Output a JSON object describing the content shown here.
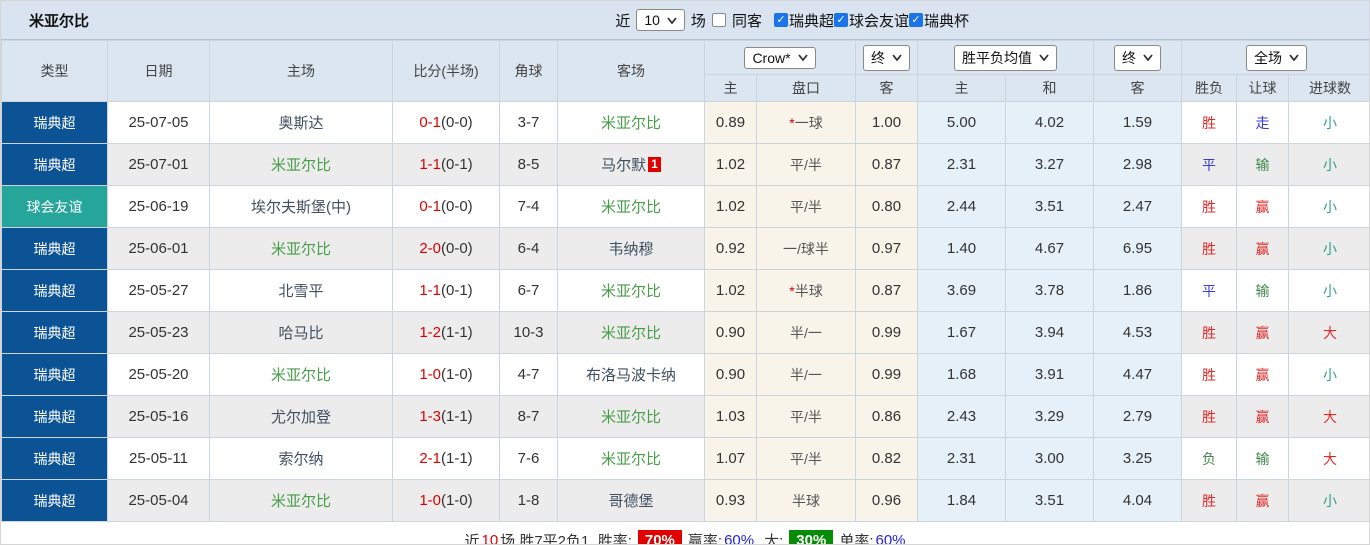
{
  "team_name": "米亚尔比",
  "topbar": {
    "title": "米亚尔比",
    "near_label": "近",
    "matches_value": "10",
    "matches_label": "场",
    "same_away_label": "同客",
    "filters": [
      {
        "label": "瑞典超",
        "checked": true
      },
      {
        "label": "球会友谊",
        "checked": true
      },
      {
        "label": "瑞典杯",
        "checked": true
      }
    ]
  },
  "selects": {
    "odds_company": "Crow*",
    "odds_time_1": "终",
    "avg_type": "胜平负均值",
    "avg_time": "终",
    "scope": "全场"
  },
  "columns": [
    "类型",
    "日期",
    "主场",
    "比分(半场)",
    "角球",
    "客场"
  ],
  "sub_columns": [
    "主",
    "盘口",
    "客",
    "主",
    "和",
    "客",
    "胜负",
    "让球",
    "进球数"
  ],
  "colors": {
    "league_bg": {
      "瑞典超": "#0b5394",
      "球会友谊": "#26a69a"
    },
    "marks": {
      "胜": "#e12b2b",
      "平": "#3b3bd9",
      "负": "#44884e",
      "赢": "#e12b2b",
      "走": "#3b3bd9",
      "输": "#44884e",
      "大": "#e12b2b",
      "小": "#2f9e86"
    },
    "team_highlight": "#4a9d4a",
    "score_red": "#e00000"
  },
  "rows": [
    {
      "league": "瑞典超",
      "date": "25-07-05",
      "home": "奥斯达",
      "score": "0-1",
      "half": "(0-0)",
      "corner": "3-7",
      "away": "米亚尔比",
      "away_badge": "",
      "crown": {
        "home": "0.89",
        "handicap": "*一球",
        "away": "1.00"
      },
      "avg": [
        "5.00",
        "4.02",
        "1.59"
      ],
      "marks": [
        "胜",
        "走",
        "小"
      ]
    },
    {
      "league": "瑞典超",
      "date": "25-07-01",
      "home": "米亚尔比",
      "score": "1-1",
      "half": "(0-1)",
      "corner": "8-5",
      "away": "马尔默",
      "away_badge": "1",
      "crown": {
        "home": "1.02",
        "handicap": "平/半",
        "away": "0.87"
      },
      "avg": [
        "2.31",
        "3.27",
        "2.98"
      ],
      "marks": [
        "平",
        "输",
        "小"
      ]
    },
    {
      "league": "球会友谊",
      "date": "25-06-19",
      "home": "埃尔夫斯堡(中)",
      "score": "0-1",
      "half": "(0-0)",
      "corner": "7-4",
      "away": "米亚尔比",
      "away_badge": "",
      "crown": {
        "home": "1.02",
        "handicap": "平/半",
        "away": "0.80"
      },
      "avg": [
        "2.44",
        "3.51",
        "2.47"
      ],
      "marks": [
        "胜",
        "赢",
        "小"
      ]
    },
    {
      "league": "瑞典超",
      "date": "25-06-01",
      "home": "米亚尔比",
      "score": "2-0",
      "half": "(0-0)",
      "corner": "6-4",
      "away": "韦纳穆",
      "away_badge": "",
      "crown": {
        "home": "0.92",
        "handicap": "一/球半",
        "away": "0.97"
      },
      "avg": [
        "1.40",
        "4.67",
        "6.95"
      ],
      "marks": [
        "胜",
        "赢",
        "小"
      ]
    },
    {
      "league": "瑞典超",
      "date": "25-05-27",
      "home": "北雪平",
      "score": "1-1",
      "half": "(0-1)",
      "corner": "6-7",
      "away": "米亚尔比",
      "away_badge": "",
      "crown": {
        "home": "1.02",
        "handicap": "*半球",
        "away": "0.87"
      },
      "avg": [
        "3.69",
        "3.78",
        "1.86"
      ],
      "marks": [
        "平",
        "输",
        "小"
      ]
    },
    {
      "league": "瑞典超",
      "date": "25-05-23",
      "home": "哈马比",
      "score": "1-2",
      "half": "(1-1)",
      "corner": "10-3",
      "away": "米亚尔比",
      "away_badge": "",
      "crown": {
        "home": "0.90",
        "handicap": "半/一",
        "away": "0.99"
      },
      "avg": [
        "1.67",
        "3.94",
        "4.53"
      ],
      "marks": [
        "胜",
        "赢",
        "大"
      ]
    },
    {
      "league": "瑞典超",
      "date": "25-05-20",
      "home": "米亚尔比",
      "score": "1-0",
      "half": "(1-0)",
      "corner": "4-7",
      "away": "布洛马波卡纳",
      "away_badge": "",
      "crown": {
        "home": "0.90",
        "handicap": "半/一",
        "away": "0.99"
      },
      "avg": [
        "1.68",
        "3.91",
        "4.47"
      ],
      "marks": [
        "胜",
        "赢",
        "小"
      ]
    },
    {
      "league": "瑞典超",
      "date": "25-05-16",
      "home": "尤尔加登",
      "score": "1-3",
      "half": "(1-1)",
      "corner": "8-7",
      "away": "米亚尔比",
      "away_badge": "",
      "crown": {
        "home": "1.03",
        "handicap": "平/半",
        "away": "0.86"
      },
      "avg": [
        "2.43",
        "3.29",
        "2.79"
      ],
      "marks": [
        "胜",
        "赢",
        "大"
      ]
    },
    {
      "league": "瑞典超",
      "date": "25-05-11",
      "home": "索尔纳",
      "score": "2-1",
      "half": "(1-1)",
      "corner": "7-6",
      "away": "米亚尔比",
      "away_badge": "",
      "crown": {
        "home": "1.07",
        "handicap": "平/半",
        "away": "0.82"
      },
      "avg": [
        "2.31",
        "3.00",
        "3.25"
      ],
      "marks": [
        "负",
        "输",
        "大"
      ]
    },
    {
      "league": "瑞典超",
      "date": "25-05-04",
      "home": "米亚尔比",
      "score": "1-0",
      "half": "(1-0)",
      "corner": "1-8",
      "away": "哥德堡",
      "away_badge": "",
      "crown": {
        "home": "0.93",
        "handicap": "半球",
        "away": "0.96"
      },
      "avg": [
        "1.84",
        "3.51",
        "4.04"
      ],
      "marks": [
        "胜",
        "赢",
        "小"
      ]
    }
  ],
  "footer": {
    "near_label": "近",
    "count": "10",
    "summary": "场,胜7平2负1, 胜率:",
    "win_rate": "70%",
    "earn_label": "赢率:",
    "earn_value": "60%",
    "big_label": "大:",
    "big_value": "30%",
    "odd_label": "单率:",
    "odd_value": "60%"
  }
}
